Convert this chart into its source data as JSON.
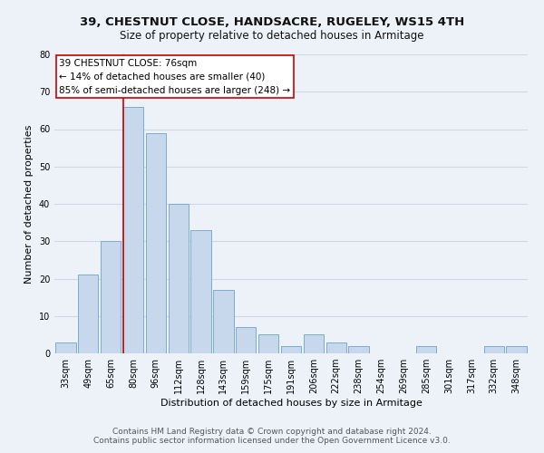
{
  "title": "39, CHESTNUT CLOSE, HANDSACRE, RUGELEY, WS15 4TH",
  "subtitle": "Size of property relative to detached houses in Armitage",
  "xlabel": "Distribution of detached houses by size in Armitage",
  "ylabel": "Number of detached properties",
  "categories": [
    "33sqm",
    "49sqm",
    "65sqm",
    "80sqm",
    "96sqm",
    "112sqm",
    "128sqm",
    "143sqm",
    "159sqm",
    "175sqm",
    "191sqm",
    "206sqm",
    "222sqm",
    "238sqm",
    "254sqm",
    "269sqm",
    "285sqm",
    "301sqm",
    "317sqm",
    "332sqm",
    "348sqm"
  ],
  "values": [
    3,
    21,
    30,
    66,
    59,
    40,
    33,
    17,
    7,
    5,
    2,
    5,
    3,
    2,
    0,
    0,
    2,
    0,
    0,
    2,
    2
  ],
  "bar_color": "#c8d8ec",
  "bar_edge_color": "#7aadd4",
  "annotation_box_text_line1": "39 CHESTNUT CLOSE: 76sqm",
  "annotation_box_text_line2": "← 14% of detached houses are smaller (40)",
  "annotation_box_text_line3": "85% of semi-detached houses are larger (248) →",
  "annotation_box_color": "#ffffff",
  "annotation_box_edge_color": "#cc0000",
  "red_line_color": "#cc0000",
  "red_line_bin_index": 3,
  "ylim": [
    0,
    80
  ],
  "yticks": [
    0,
    10,
    20,
    30,
    40,
    50,
    60,
    70,
    80
  ],
  "grid_color": "#d0d8e8",
  "background_color": "#edf2f9",
  "footer_line1": "Contains HM Land Registry data © Crown copyright and database right 2024.",
  "footer_line2": "Contains public sector information licensed under the Open Government Licence v3.0.",
  "title_fontsize": 9.5,
  "subtitle_fontsize": 8.5,
  "tick_fontsize": 7,
  "ylabel_fontsize": 8,
  "xlabel_fontsize": 8,
  "annotation_fontsize": 7.5,
  "footer_fontsize": 6.5
}
